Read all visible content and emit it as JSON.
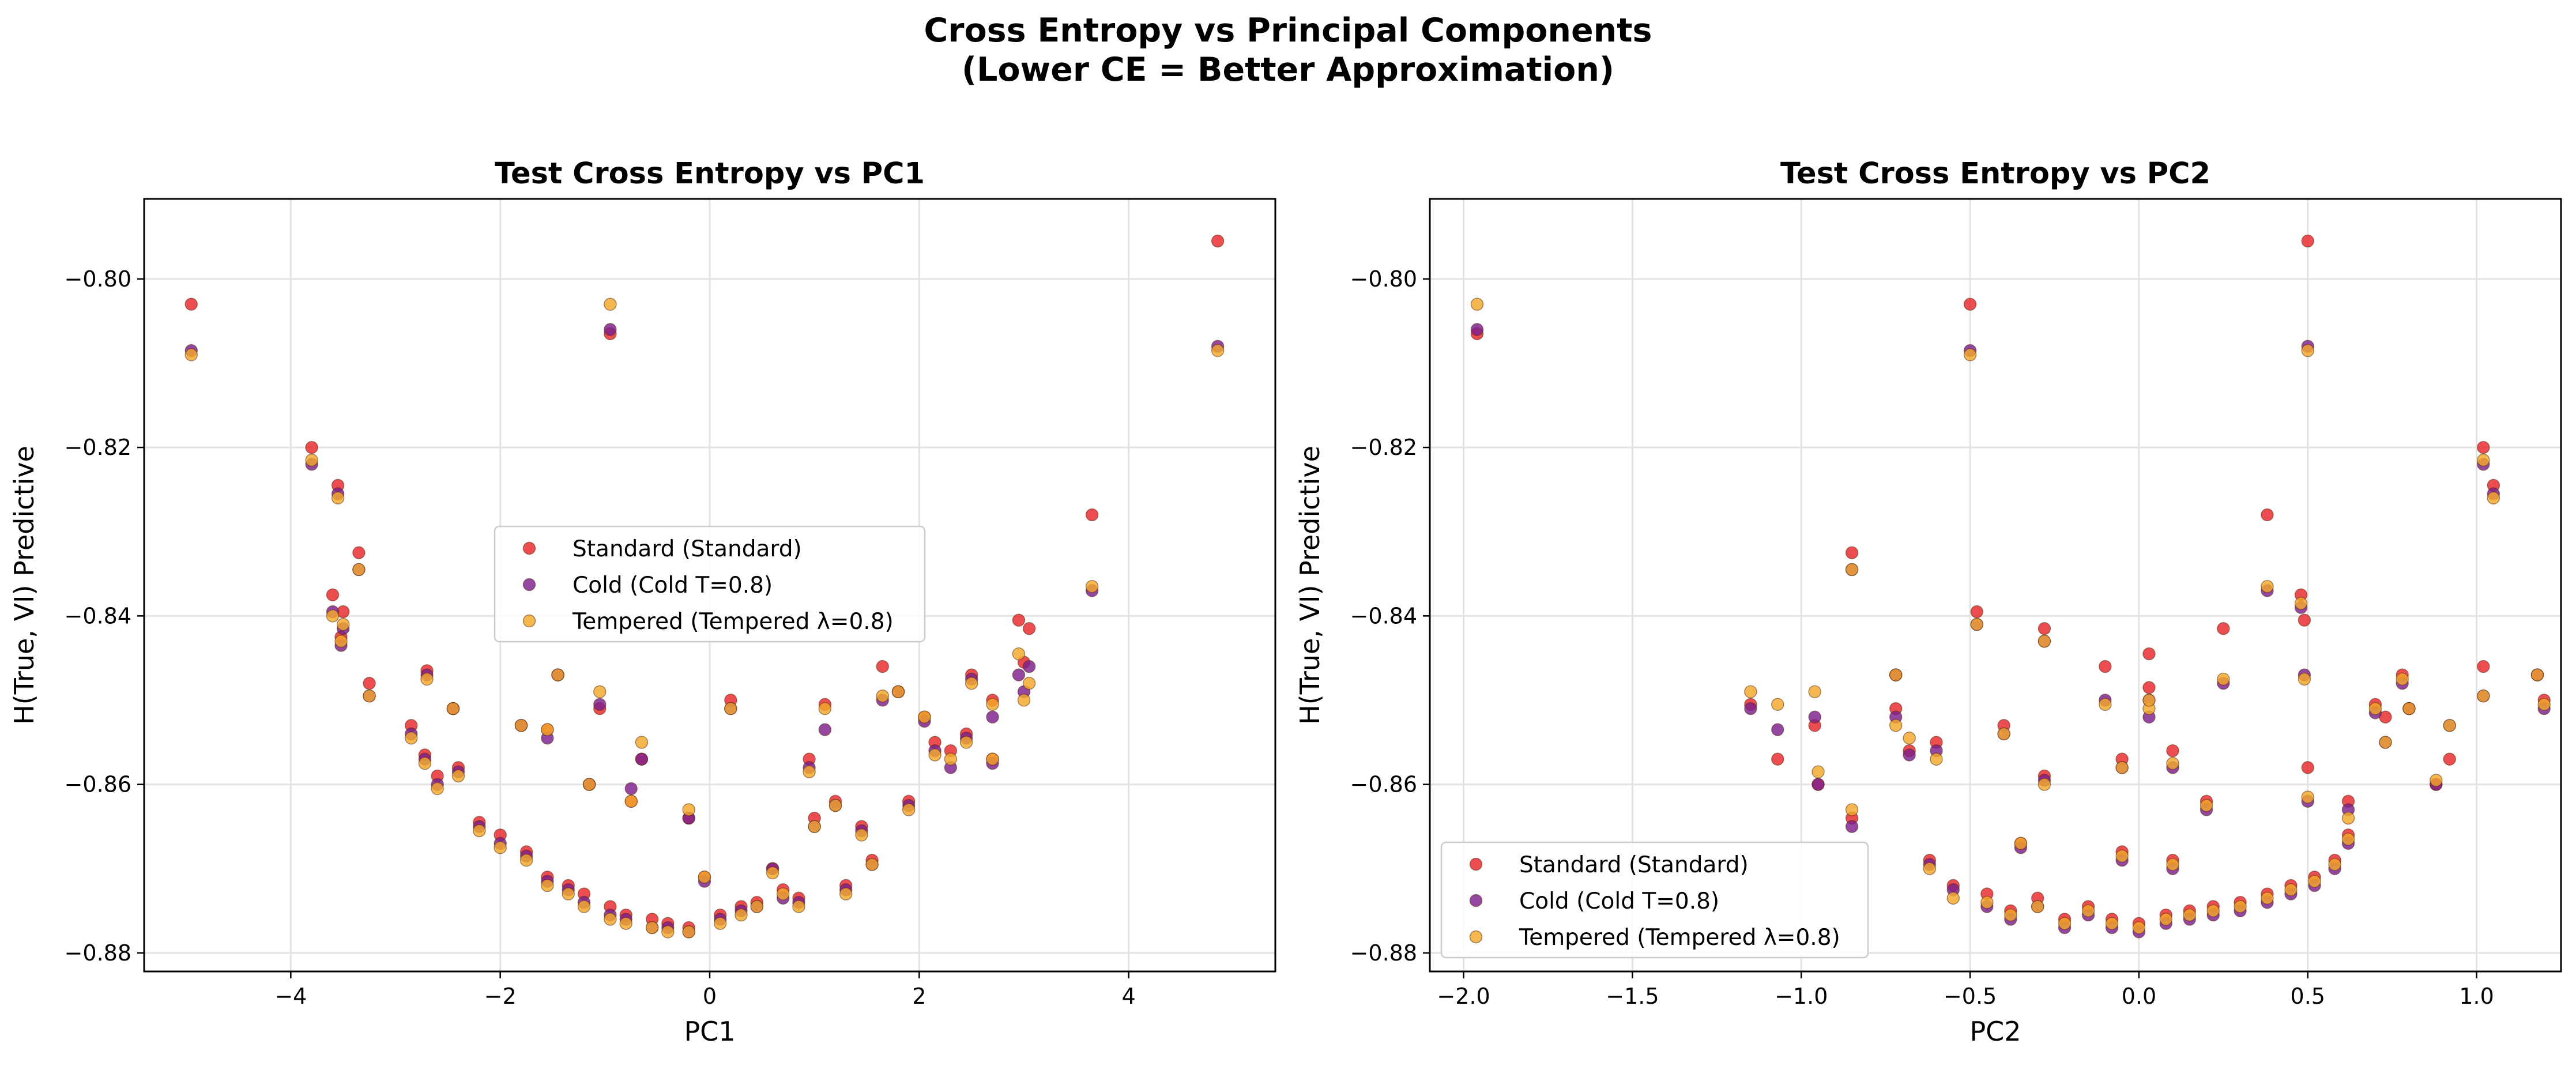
{
  "figure": {
    "suptitle_line1": "Cross Entropy vs Principal Components",
    "suptitle_line2": "(Lower CE = Better Approximation)"
  },
  "legend": {
    "items": [
      {
        "label": "Standard (Standard)",
        "color": "#e8262a"
      },
      {
        "label": "Cold (Cold T=0.8)",
        "color": "#7b1e8c"
      },
      {
        "label": "Tempered (Tempered λ=0.8)",
        "color": "#f3a72a"
      }
    ]
  },
  "chart_data": [
    {
      "type": "scatter",
      "title": "Test Cross Entropy vs PC1",
      "xlabel": "PC1",
      "ylabel": "H(True, VI) Predictive",
      "xlim": [
        -5.4,
        5.4
      ],
      "ylim": [
        -0.8822,
        -0.7905
      ],
      "xticks": [
        -4,
        -2,
        0,
        2,
        4
      ],
      "yticks": [
        -0.88,
        -0.86,
        -0.84,
        -0.82,
        -0.8
      ],
      "xtick_labels": [
        "−4",
        "−2",
        "0",
        "2",
        "4"
      ],
      "ytick_labels": [
        "−0.88",
        "−0.86",
        "−0.84",
        "−0.82",
        "−0.80"
      ],
      "grid": true,
      "legend_position": "center-left",
      "series_order": [
        "Standard (Standard)",
        "Cold (Cold T=0.8)",
        "Tempered (Tempered λ=0.8)"
      ],
      "points": [
        [
          -4.95,
          -0.803,
          -0.8085,
          -0.809
        ],
        [
          -3.8,
          -0.82,
          -0.822,
          -0.8215
        ],
        [
          -3.55,
          -0.8245,
          -0.8255,
          -0.826
        ],
        [
          -3.35,
          -0.8325,
          -0.8345,
          -0.8345
        ],
        [
          -3.6,
          -0.8375,
          -0.8395,
          -0.84
        ],
        [
          -3.5,
          -0.8395,
          -0.8415,
          -0.841
        ],
        [
          -3.52,
          -0.8425,
          -0.8435,
          -0.843
        ],
        [
          -3.25,
          -0.848,
          -0.8495,
          -0.8495
        ],
        [
          -2.7,
          -0.8465,
          -0.847,
          -0.8475
        ],
        [
          -2.85,
          -0.853,
          -0.854,
          -0.8545
        ],
        [
          -2.72,
          -0.8565,
          -0.857,
          -0.8575
        ],
        [
          -2.6,
          -0.859,
          -0.86,
          -0.8605
        ],
        [
          -2.45,
          -0.851,
          -0.851,
          -0.851
        ],
        [
          -2.4,
          -0.858,
          -0.8585,
          -0.859
        ],
        [
          -2.2,
          -0.8645,
          -0.865,
          -0.8655
        ],
        [
          -2.0,
          -0.866,
          -0.867,
          -0.8675
        ],
        [
          -1.8,
          -0.853,
          -0.853,
          -0.853
        ],
        [
          -1.75,
          -0.868,
          -0.8685,
          -0.869
        ],
        [
          -1.55,
          -0.871,
          -0.8715,
          -0.872
        ],
        [
          -1.55,
          -0.8535,
          -0.8545,
          -0.8535
        ],
        [
          -1.45,
          -0.847,
          -0.847,
          -0.847
        ],
        [
          -1.35,
          -0.872,
          -0.8725,
          -0.873
        ],
        [
          -1.2,
          -0.873,
          -0.874,
          -0.8745
        ],
        [
          -1.15,
          -0.86,
          -0.86,
          -0.86
        ],
        [
          -1.05,
          -0.851,
          -0.8505,
          -0.849
        ],
        [
          -0.95,
          -0.8745,
          -0.8755,
          -0.876
        ],
        [
          -0.95,
          -0.8065,
          -0.806,
          -0.803
        ],
        [
          -0.8,
          -0.8755,
          -0.876,
          -0.8765
        ],
        [
          -0.75,
          -0.862,
          -0.8605,
          -0.862
        ],
        [
          -0.65,
          -0.857,
          -0.857,
          -0.855
        ],
        [
          -0.55,
          -0.876,
          -0.877,
          -0.877
        ],
        [
          -0.4,
          -0.8765,
          -0.877,
          -0.8775
        ],
        [
          -0.2,
          -0.877,
          -0.8775,
          -0.8775
        ],
        [
          -0.2,
          -0.864,
          -0.864,
          -0.863
        ],
        [
          -0.05,
          -0.871,
          -0.8715,
          -0.871
        ],
        [
          0.1,
          -0.8755,
          -0.876,
          -0.8765
        ],
        [
          0.2,
          -0.85,
          -0.851,
          -0.851
        ],
        [
          0.3,
          -0.8745,
          -0.875,
          -0.8755
        ],
        [
          0.45,
          -0.874,
          -0.8745,
          -0.8745
        ],
        [
          0.6,
          -0.87,
          -0.87,
          -0.8705
        ],
        [
          0.7,
          -0.8725,
          -0.8735,
          -0.873
        ],
        [
          0.85,
          -0.8735,
          -0.874,
          -0.8745
        ],
        [
          0.95,
          -0.857,
          -0.858,
          -0.8585
        ],
        [
          1.0,
          -0.864,
          -0.865,
          -0.865
        ],
        [
          1.1,
          -0.8505,
          -0.8535,
          -0.851
        ],
        [
          1.2,
          -0.862,
          -0.8625,
          -0.8625
        ],
        [
          1.3,
          -0.872,
          -0.8725,
          -0.873
        ],
        [
          1.45,
          -0.865,
          -0.8655,
          -0.866
        ],
        [
          1.55,
          -0.869,
          -0.8695,
          -0.8695
        ],
        [
          1.65,
          -0.846,
          -0.85,
          -0.8495
        ],
        [
          1.8,
          -0.849,
          -0.849,
          -0.849
        ],
        [
          1.9,
          -0.862,
          -0.8625,
          -0.863
        ],
        [
          2.05,
          -0.852,
          -0.8525,
          -0.852
        ],
        [
          2.15,
          -0.855,
          -0.856,
          -0.8565
        ],
        [
          2.3,
          -0.856,
          -0.858,
          -0.857
        ],
        [
          2.45,
          -0.854,
          -0.8545,
          -0.855
        ],
        [
          2.5,
          -0.847,
          -0.8475,
          -0.848
        ],
        [
          2.7,
          -0.85,
          -0.852,
          -0.8505
        ],
        [
          2.7,
          -0.857,
          -0.8575,
          -0.857
        ],
        [
          2.95,
          -0.8405,
          -0.847,
          -0.8445
        ],
        [
          3.05,
          -0.8415,
          -0.846,
          -0.848
        ],
        [
          3.0,
          -0.8455,
          -0.849,
          -0.85
        ],
        [
          3.65,
          -0.828,
          -0.837,
          -0.8365
        ],
        [
          4.85,
          -0.7955,
          -0.808,
          -0.8085
        ]
      ]
    },
    {
      "type": "scatter",
      "title": "Test Cross Entropy vs PC2",
      "xlabel": "PC2",
      "ylabel": "H(True, VI) Predictive",
      "xlim": [
        -2.1,
        1.25
      ],
      "ylim": [
        -0.8822,
        -0.7905
      ],
      "xticks": [
        -2.0,
        -1.5,
        -1.0,
        -0.5,
        0.0,
        0.5,
        1.0
      ],
      "yticks": [
        -0.88,
        -0.86,
        -0.84,
        -0.82,
        -0.8
      ],
      "xtick_labels": [
        "−2.0",
        "−1.5",
        "−1.0",
        "−0.5",
        "0.0",
        "0.5",
        "1.0"
      ],
      "ytick_labels": [
        "−0.88",
        "−0.86",
        "−0.84",
        "−0.82",
        "−0.80"
      ],
      "grid": true,
      "legend_position": "lower-left",
      "series_order": [
        "Standard (Standard)",
        "Cold (Cold T=0.8)",
        "Tempered (Tempered λ=0.8)"
      ],
      "points": [
        [
          -1.96,
          -0.8065,
          -0.806,
          -0.803
        ],
        [
          -0.5,
          -0.803,
          -0.8085,
          -0.809
        ],
        [
          0.5,
          -0.7955,
          -0.808,
          -0.8085
        ],
        [
          1.02,
          -0.82,
          -0.822,
          -0.8215
        ],
        [
          1.05,
          -0.8245,
          -0.8255,
          -0.826
        ],
        [
          0.38,
          -0.828,
          -0.837,
          -0.8365
        ],
        [
          -0.85,
          -0.8325,
          -0.8345,
          -0.8345
        ],
        [
          -1.15,
          -0.8505,
          -0.851,
          -0.849
        ],
        [
          -1.07,
          -0.857,
          -0.8535,
          -0.8505
        ],
        [
          -0.96,
          -0.853,
          -0.852,
          -0.849
        ],
        [
          -0.95,
          -0.86,
          -0.86,
          -0.8585
        ],
        [
          -0.85,
          -0.864,
          -0.865,
          -0.863
        ],
        [
          -0.72,
          -0.847,
          -0.847,
          -0.847
        ],
        [
          -0.72,
          -0.851,
          -0.852,
          -0.853
        ],
        [
          -0.68,
          -0.856,
          -0.8565,
          -0.8545
        ],
        [
          -0.6,
          -0.855,
          -0.856,
          -0.857
        ],
        [
          -0.48,
          -0.8395,
          -0.841,
          -0.841
        ],
        [
          -0.4,
          -0.853,
          -0.854,
          -0.854
        ],
        [
          -0.28,
          -0.8415,
          -0.843,
          -0.843
        ],
        [
          -0.28,
          -0.859,
          -0.8595,
          -0.86
        ],
        [
          -0.1,
          -0.846,
          -0.85,
          -0.8505
        ],
        [
          -0.05,
          -0.857,
          -0.858,
          -0.858
        ],
        [
          0.03,
          -0.8445,
          -0.85,
          -0.851
        ],
        [
          0.03,
          -0.8485,
          -0.852,
          -0.85
        ],
        [
          0.1,
          -0.856,
          -0.858,
          -0.8575
        ],
        [
          0.2,
          -0.862,
          -0.863,
          -0.8625
        ],
        [
          0.25,
          -0.8415,
          -0.848,
          -0.8475
        ],
        [
          0.48,
          -0.8375,
          -0.839,
          -0.8385
        ],
        [
          0.49,
          -0.8405,
          -0.847,
          -0.8475
        ],
        [
          0.5,
          -0.858,
          -0.862,
          -0.8615
        ],
        [
          0.62,
          -0.862,
          -0.863,
          -0.864
        ],
        [
          0.7,
          -0.8505,
          -0.8515,
          -0.851
        ],
        [
          0.73,
          -0.852,
          -0.855,
          -0.855
        ],
        [
          0.78,
          -0.847,
          -0.848,
          -0.8475
        ],
        [
          0.8,
          -0.851,
          -0.851,
          -0.851
        ],
        [
          0.88,
          -0.86,
          -0.86,
          -0.8595
        ],
        [
          0.92,
          -0.857,
          -0.853,
          -0.853
        ],
        [
          1.02,
          -0.846,
          -0.8495,
          -0.8495
        ],
        [
          1.18,
          -0.847,
          -0.847,
          -0.847
        ],
        [
          1.2,
          -0.85,
          -0.851,
          -0.8505
        ],
        [
          -0.62,
          -0.869,
          -0.8695,
          -0.87
        ],
        [
          -0.55,
          -0.872,
          -0.8725,
          -0.8735
        ],
        [
          -0.45,
          -0.873,
          -0.8745,
          -0.874
        ],
        [
          -0.38,
          -0.875,
          -0.876,
          -0.8755
        ],
        [
          -0.3,
          -0.8735,
          -0.8745,
          -0.8745
        ],
        [
          -0.22,
          -0.876,
          -0.877,
          -0.8765
        ],
        [
          -0.15,
          -0.8745,
          -0.8755,
          -0.875
        ],
        [
          -0.08,
          -0.876,
          -0.877,
          -0.8765
        ],
        [
          0.0,
          -0.8765,
          -0.8775,
          -0.877
        ],
        [
          0.08,
          -0.8755,
          -0.8765,
          -0.876
        ],
        [
          0.15,
          -0.875,
          -0.876,
          -0.8755
        ],
        [
          0.22,
          -0.8745,
          -0.8755,
          -0.875
        ],
        [
          0.3,
          -0.874,
          -0.875,
          -0.8745
        ],
        [
          0.38,
          -0.873,
          -0.874,
          -0.8735
        ],
        [
          0.45,
          -0.872,
          -0.873,
          -0.8725
        ],
        [
          0.52,
          -0.871,
          -0.872,
          -0.8715
        ],
        [
          0.58,
          -0.869,
          -0.87,
          -0.8695
        ],
        [
          0.62,
          -0.866,
          -0.867,
          -0.8665
        ],
        [
          -0.35,
          -0.867,
          -0.8675,
          -0.867
        ],
        [
          0.1,
          -0.869,
          -0.87,
          -0.8695
        ],
        [
          -0.05,
          -0.868,
          -0.869,
          -0.8685
        ]
      ]
    }
  ]
}
